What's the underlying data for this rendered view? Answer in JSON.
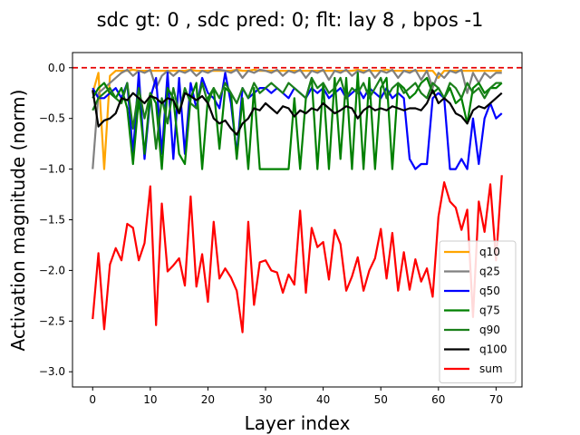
{
  "chart_data": {
    "type": "line",
    "title": "sdc gt: 0 , sdc pred: 0; flt: lay 8 , bpos -1",
    "xlabel": "Layer index",
    "ylabel": "Activation magnitude (norm)",
    "xlim": [
      -3.5,
      74.5
    ],
    "ylim": [
      -3.15,
      0.15
    ],
    "xticks": [
      0,
      10,
      20,
      30,
      40,
      50,
      60,
      70
    ],
    "yticks": [
      0.0,
      -0.5,
      -1.0,
      -1.5,
      -2.0,
      -2.5,
      -3.0
    ],
    "xtick_labels": [
      "0",
      "10",
      "20",
      "30",
      "40",
      "50",
      "60",
      "70"
    ],
    "ytick_labels": [
      "0.0",
      "−0.5",
      "−1.0",
      "−1.5",
      "−2.0",
      "−2.5",
      "−3.0"
    ],
    "grid": false,
    "legend_position": "lower-right",
    "reference_line": {
      "y": 0.0,
      "color": "#e60000",
      "style": "dashed"
    },
    "series": [
      {
        "name": "q10",
        "color": "#ffa500",
        "values": [
          -0.25,
          -0.05,
          -1.0,
          -0.08,
          -0.03,
          -0.03,
          -0.03,
          -0.02,
          -0.03,
          -0.03,
          -0.03,
          -0.03,
          -0.03,
          -0.03,
          -0.03,
          -0.03,
          -0.03,
          -0.02,
          -0.03,
          -0.03,
          -0.03,
          -0.03,
          -0.03,
          -0.03,
          -0.03,
          -0.02,
          -0.03,
          -0.03,
          -0.02,
          -0.03,
          -0.03,
          -0.03,
          -0.03,
          -0.03,
          -0.03,
          -0.03,
          -0.03,
          -0.03,
          -0.03,
          -0.03,
          -0.03,
          -0.03,
          -0.03,
          -0.03,
          -0.03,
          -0.03,
          -0.02,
          -0.03,
          -0.03,
          -0.03,
          -0.03,
          -0.02,
          -0.03,
          -0.03,
          -0.03,
          -0.03,
          -0.03,
          -0.03,
          -0.03,
          -0.03,
          -0.1,
          -0.03,
          -0.03,
          -0.03,
          -0.03,
          -0.03,
          -0.03,
          -0.03,
          -0.03,
          -0.03,
          -0.03,
          -0.03
        ]
      },
      {
        "name": "q25",
        "color": "#808080",
        "values": [
          -1.0,
          -0.25,
          -0.2,
          -0.15,
          -0.1,
          -0.05,
          -0.02,
          -0.08,
          -0.03,
          -0.05,
          -0.02,
          -0.2,
          -0.08,
          -0.03,
          -0.08,
          -0.03,
          -0.05,
          -0.02,
          -0.08,
          -0.03,
          -0.05,
          -0.02,
          -0.02,
          -0.03,
          -0.05,
          -0.02,
          -0.1,
          -0.03,
          -0.05,
          -0.02,
          -0.03,
          -0.05,
          -0.02,
          -0.08,
          -0.03,
          -0.05,
          -0.02,
          -0.1,
          -0.03,
          -0.05,
          -0.02,
          -0.12,
          -0.03,
          -0.05,
          -0.02,
          -0.08,
          -0.03,
          -0.05,
          -0.02,
          -0.1,
          -0.03,
          -0.05,
          -0.02,
          -0.1,
          -0.03,
          -0.05,
          -0.02,
          -0.12,
          -0.03,
          -0.2,
          -0.05,
          -0.1,
          -0.03,
          -0.05,
          -0.02,
          -0.25,
          -0.05,
          -0.15,
          -0.05,
          -0.1,
          -0.05,
          -0.05
        ]
      },
      {
        "name": "q50",
        "color": "#0000ff",
        "values": [
          -0.2,
          -0.3,
          -0.3,
          -0.25,
          -0.2,
          -0.3,
          -0.15,
          -0.85,
          -0.05,
          -0.9,
          -0.3,
          -0.1,
          -0.85,
          -0.05,
          -0.9,
          -0.1,
          -0.85,
          -0.15,
          -0.4,
          -0.1,
          -0.25,
          -0.3,
          -0.4,
          -0.05,
          -0.35,
          -0.85,
          -0.2,
          -0.3,
          -0.25,
          -0.2,
          -0.2,
          -0.25,
          -0.2,
          -0.25,
          -0.3,
          -0.2,
          -0.25,
          -0.3,
          -0.2,
          -0.25,
          -0.2,
          -0.3,
          -0.25,
          -0.2,
          -0.3,
          -0.25,
          -0.2,
          -0.3,
          -0.2,
          -0.25,
          -0.3,
          -0.2,
          -0.3,
          -0.25,
          -0.3,
          -0.9,
          -1.0,
          -0.95,
          -0.95,
          -0.3,
          -0.25,
          -0.3,
          -1.0,
          -1.0,
          -0.9,
          -1.0,
          -0.5,
          -0.95,
          -0.5,
          -0.35,
          -0.5,
          -0.45
        ]
      },
      {
        "name": "q75",
        "color": "#008000",
        "values": [
          -0.3,
          -0.2,
          -0.15,
          -0.25,
          -0.3,
          -0.2,
          -0.4,
          -0.95,
          -0.3,
          -0.85,
          -0.25,
          -0.35,
          -1.0,
          -0.2,
          -0.3,
          -0.85,
          -0.95,
          -0.3,
          -0.15,
          -1.0,
          -0.3,
          -0.2,
          -0.8,
          -0.2,
          -0.25,
          -0.9,
          -0.3,
          -1.0,
          -0.2,
          -1.0,
          -1.0,
          -1.0,
          -1.0,
          -1.0,
          -1.0,
          -0.3,
          -1.0,
          -0.3,
          -0.1,
          -1.0,
          -0.15,
          -1.0,
          -0.1,
          -0.9,
          -0.1,
          -1.0,
          -0.05,
          -1.0,
          -0.1,
          -1.0,
          -0.2,
          -0.1,
          -1.0,
          -0.15,
          -0.2,
          -0.3,
          -0.25,
          -0.15,
          -0.1,
          -0.25,
          -0.2,
          -0.3,
          -0.2,
          -0.35,
          -0.3,
          -0.55,
          -0.2,
          -0.15,
          -0.25,
          -0.2,
          -0.2,
          -0.15
        ]
      },
      {
        "name": "q90",
        "color": "#1a7f1a",
        "values": [
          -0.42,
          -0.3,
          -0.25,
          -0.2,
          -0.3,
          -0.35,
          -0.15,
          -0.6,
          -0.2,
          -0.5,
          -0.25,
          -0.8,
          -0.3,
          -0.55,
          -0.2,
          -0.45,
          -0.2,
          -0.35,
          -0.4,
          -0.15,
          -0.35,
          -0.2,
          -0.3,
          -0.15,
          -0.25,
          -0.35,
          -0.2,
          -0.3,
          -0.15,
          -0.25,
          -0.2,
          -0.15,
          -0.2,
          -0.25,
          -0.15,
          -0.2,
          -0.25,
          -0.3,
          -0.1,
          -0.2,
          -0.15,
          -0.25,
          -0.2,
          -0.1,
          -0.3,
          -0.2,
          -0.25,
          -0.15,
          -0.3,
          -0.2,
          -0.1,
          -0.3,
          -0.2,
          -0.15,
          -0.25,
          -0.2,
          -0.15,
          -0.25,
          -0.3,
          -0.15,
          -0.2,
          -0.3,
          -0.15,
          -0.2,
          -0.3,
          -0.15,
          -0.25,
          -0.2,
          -0.3,
          -0.2,
          -0.15,
          -0.15
        ]
      },
      {
        "name": "q100",
        "color": "#000000",
        "values": [
          -0.22,
          -0.58,
          -0.52,
          -0.5,
          -0.45,
          -0.3,
          -0.32,
          -0.25,
          -0.3,
          -0.35,
          -0.28,
          -0.3,
          -0.35,
          -0.3,
          -0.32,
          -0.45,
          -0.25,
          -0.28,
          -0.32,
          -0.28,
          -0.35,
          -0.5,
          -0.55,
          -0.52,
          -0.6,
          -0.66,
          -0.55,
          -0.5,
          -0.4,
          -0.42,
          -0.35,
          -0.4,
          -0.45,
          -0.38,
          -0.4,
          -0.48,
          -0.42,
          -0.45,
          -0.4,
          -0.42,
          -0.35,
          -0.4,
          -0.45,
          -0.42,
          -0.38,
          -0.4,
          -0.5,
          -0.42,
          -0.38,
          -0.42,
          -0.4,
          -0.42,
          -0.38,
          -0.4,
          -0.42,
          -0.4,
          -0.4,
          -0.42,
          -0.35,
          -0.22,
          -0.35,
          -0.3,
          -0.35,
          -0.45,
          -0.48,
          -0.55,
          -0.42,
          -0.38,
          -0.4,
          -0.35,
          -0.3,
          -0.25
        ]
      },
      {
        "name": "sum",
        "color": "#ff0000",
        "values": [
          -2.48,
          -1.83,
          -2.58,
          -1.94,
          -1.78,
          -1.9,
          -1.54,
          -1.58,
          -1.9,
          -1.73,
          -1.17,
          -2.54,
          -1.34,
          -2.01,
          -1.95,
          -1.88,
          -2.15,
          -1.27,
          -2.16,
          -1.84,
          -2.31,
          -1.52,
          -2.08,
          -1.98,
          -2.07,
          -2.2,
          -2.61,
          -1.52,
          -2.34,
          -1.92,
          -1.9,
          -2.0,
          -2.02,
          -2.22,
          -2.04,
          -2.14,
          -1.41,
          -2.22,
          -1.58,
          -1.77,
          -1.72,
          -2.09,
          -1.6,
          -1.74,
          -2.2,
          -2.06,
          -1.87,
          -2.2,
          -2.0,
          -1.88,
          -1.59,
          -2.08,
          -1.63,
          -2.2,
          -1.82,
          -2.19,
          -1.89,
          -2.11,
          -1.98,
          -2.26,
          -1.47,
          -1.13,
          -1.32,
          -1.38,
          -1.6,
          -1.4,
          -2.46,
          -1.32,
          -1.62,
          -1.15,
          -1.9,
          -1.06
        ]
      }
    ]
  }
}
